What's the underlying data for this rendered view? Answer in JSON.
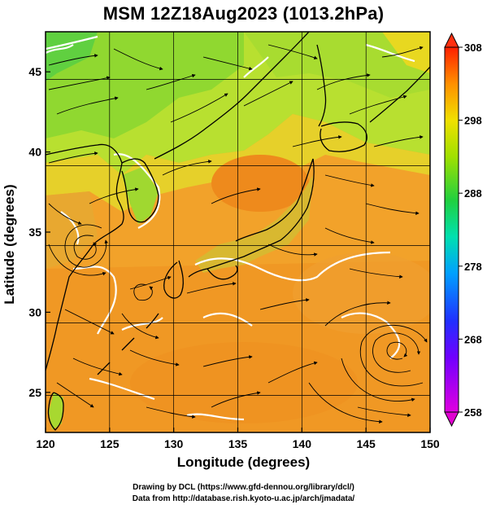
{
  "title": "MSM 12Z18Aug2023 (1013.2hPa)",
  "axes": {
    "x_label": "Longitude (degrees)",
    "y_label": "Latitude  (degrees)",
    "x_ticks": [
      "120",
      "125",
      "130",
      "135",
      "140",
      "145",
      "150"
    ],
    "y_ticks": [
      "25",
      "30",
      "35",
      "40",
      "45"
    ]
  },
  "colorbar": {
    "ticks": [
      "308",
      "298",
      "288",
      "278",
      "268",
      "258"
    ],
    "range": [
      258,
      308
    ]
  },
  "credits": {
    "line1": "Drawing by DCL (https://www.gfd-dennou.org/library/dcl/)",
    "line2": "Data from http://database.rish.kyoto-u.ac.jp/arch/jmadata/"
  },
  "map": {
    "lon_range": [
      120,
      150
    ],
    "lat_range": [
      22.5,
      47.5
    ],
    "field": "temperature (K)",
    "arrows": "wind streamlines"
  }
}
